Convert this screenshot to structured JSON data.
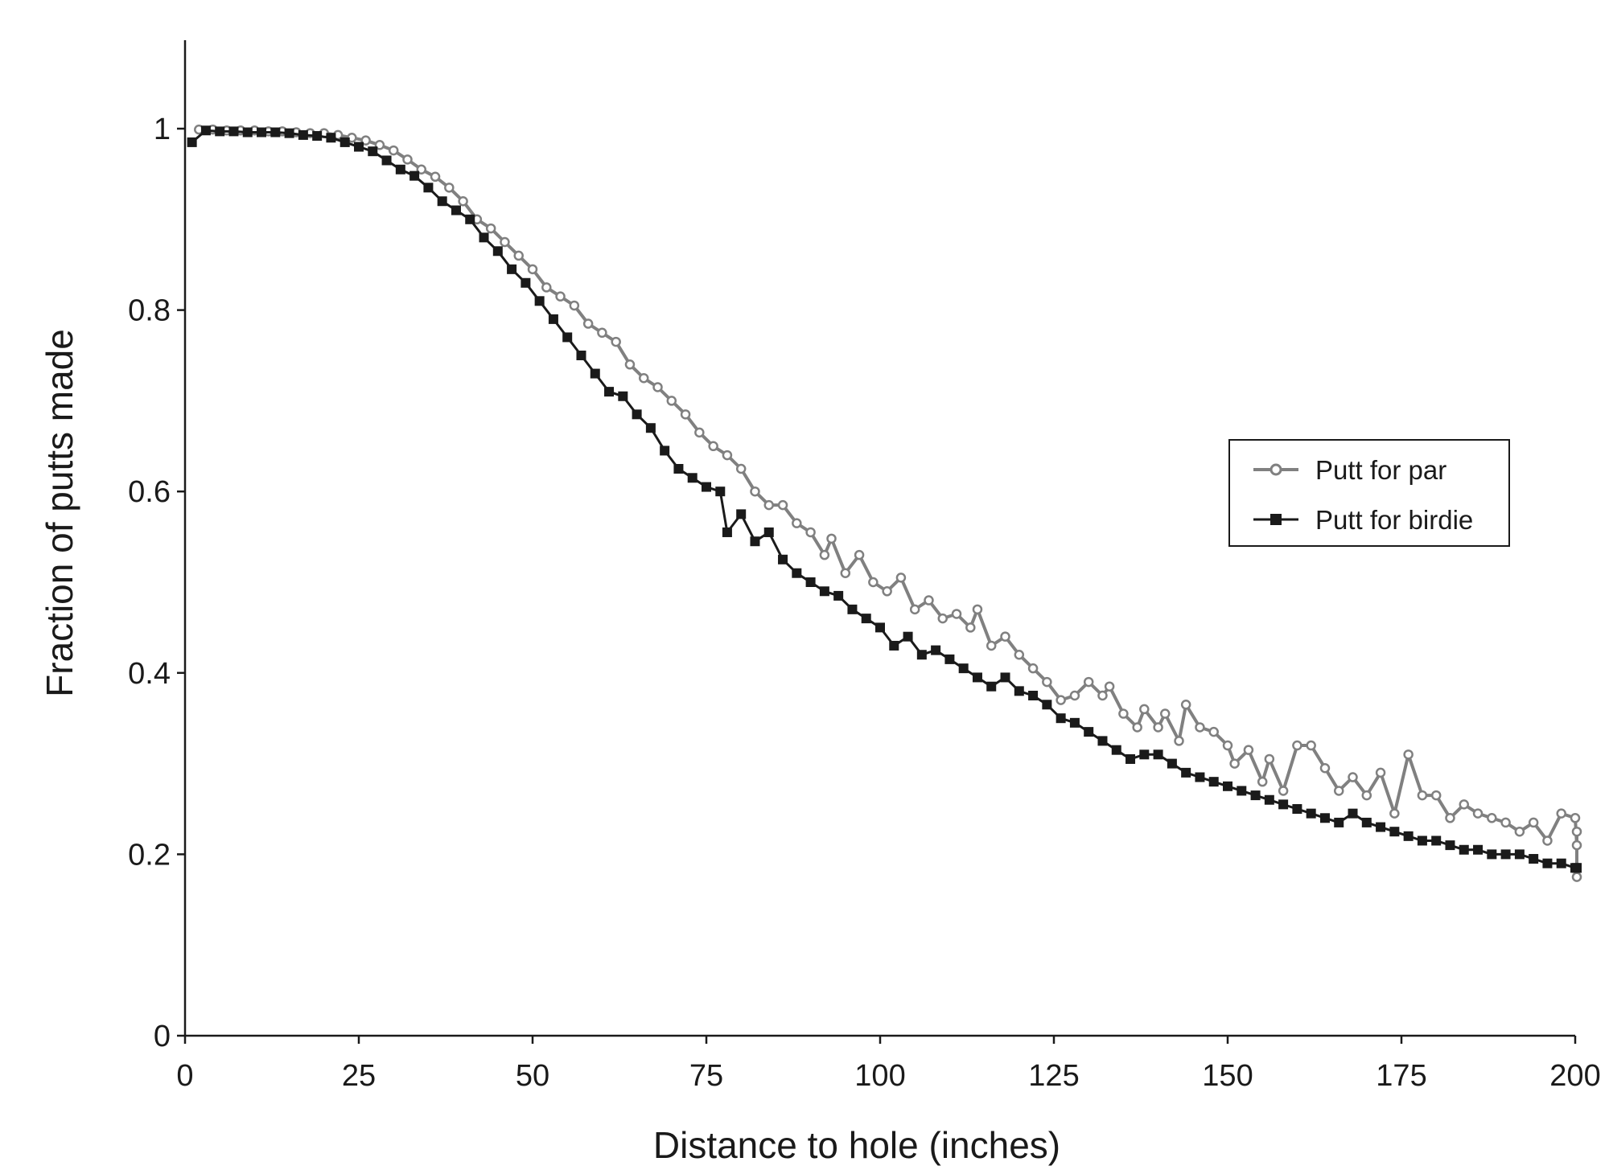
{
  "chart_data": {
    "type": "line",
    "title": "",
    "xlabel": "Distance to hole (inches)",
    "ylabel": "Fraction of putts made",
    "xlim": [
      0,
      200
    ],
    "ylim": [
      0,
      1.1
    ],
    "x_ticks": [
      0,
      25,
      50,
      75,
      100,
      125,
      150,
      175,
      200
    ],
    "x_tick_labels": [
      "0",
      "25",
      "50",
      "75",
      "100",
      "125",
      "150",
      "175",
      "200"
    ],
    "y_ticks": [
      0,
      0.2,
      0.4,
      0.6,
      0.8,
      1
    ],
    "y_tick_labels": [
      "0",
      "0.2",
      "0.4",
      "0.6",
      "0.8",
      "1"
    ],
    "grid": false,
    "legend_position": "right-middle",
    "series": [
      {
        "name": "Putt for par",
        "color": "#808080",
        "marker": "open-circle",
        "points": [
          [
            2,
            0.999
          ],
          [
            4,
            0.999
          ],
          [
            6,
            0.998
          ],
          [
            8,
            0.998
          ],
          [
            10,
            0.998
          ],
          [
            12,
            0.997
          ],
          [
            14,
            0.997
          ],
          [
            16,
            0.996
          ],
          [
            18,
            0.995
          ],
          [
            20,
            0.995
          ],
          [
            22,
            0.993
          ],
          [
            24,
            0.99
          ],
          [
            26,
            0.987
          ],
          [
            28,
            0.982
          ],
          [
            30,
            0.976
          ],
          [
            32,
            0.966
          ],
          [
            34,
            0.955
          ],
          [
            36,
            0.947
          ],
          [
            38,
            0.935
          ],
          [
            40,
            0.92
          ],
          [
            42,
            0.9
          ],
          [
            44,
            0.89
          ],
          [
            46,
            0.875
          ],
          [
            48,
            0.86
          ],
          [
            50,
            0.845
          ],
          [
            52,
            0.825
          ],
          [
            54,
            0.815
          ],
          [
            56,
            0.805
          ],
          [
            58,
            0.785
          ],
          [
            60,
            0.775
          ],
          [
            62,
            0.765
          ],
          [
            64,
            0.74
          ],
          [
            66,
            0.725
          ],
          [
            68,
            0.715
          ],
          [
            70,
            0.7
          ],
          [
            72,
            0.685
          ],
          [
            74,
            0.665
          ],
          [
            76,
            0.65
          ],
          [
            78,
            0.64
          ],
          [
            80,
            0.625
          ],
          [
            82,
            0.6
          ],
          [
            84,
            0.585
          ],
          [
            86,
            0.585
          ],
          [
            88,
            0.565
          ],
          [
            90,
            0.555
          ],
          [
            92,
            0.53
          ],
          [
            93,
            0.548
          ],
          [
            95,
            0.51
          ],
          [
            97,
            0.53
          ],
          [
            99,
            0.5
          ],
          [
            101,
            0.49
          ],
          [
            103,
            0.505
          ],
          [
            105,
            0.47
          ],
          [
            107,
            0.48
          ],
          [
            109,
            0.46
          ],
          [
            111,
            0.465
          ],
          [
            113,
            0.45
          ],
          [
            114,
            0.47
          ],
          [
            116,
            0.43
          ],
          [
            118,
            0.44
          ],
          [
            120,
            0.42
          ],
          [
            122,
            0.405
          ],
          [
            124,
            0.39
          ],
          [
            126,
            0.37
          ],
          [
            128,
            0.375
          ],
          [
            130,
            0.39
          ],
          [
            132,
            0.375
          ],
          [
            133,
            0.385
          ],
          [
            135,
            0.355
          ],
          [
            137,
            0.34
          ],
          [
            138,
            0.36
          ],
          [
            140,
            0.34
          ],
          [
            141,
            0.355
          ],
          [
            143,
            0.325
          ],
          [
            144,
            0.365
          ],
          [
            146,
            0.34
          ],
          [
            148,
            0.335
          ],
          [
            150,
            0.32
          ],
          [
            151,
            0.3
          ],
          [
            153,
            0.315
          ],
          [
            155,
            0.28
          ],
          [
            156,
            0.305
          ],
          [
            158,
            0.27
          ],
          [
            160,
            0.32
          ],
          [
            162,
            0.32
          ],
          [
            164,
            0.295
          ],
          [
            166,
            0.27
          ],
          [
            168,
            0.285
          ],
          [
            170,
            0.265
          ],
          [
            172,
            0.29
          ],
          [
            174,
            0.245
          ],
          [
            176,
            0.31
          ],
          [
            178,
            0.265
          ],
          [
            180,
            0.265
          ],
          [
            182,
            0.24
          ],
          [
            184,
            0.255
          ],
          [
            186,
            0.245
          ],
          [
            188,
            0.24
          ],
          [
            190,
            0.235
          ],
          [
            192,
            0.225
          ],
          [
            194,
            0.235
          ],
          [
            196,
            0.215
          ],
          [
            198,
            0.245
          ],
          [
            200,
            0.24
          ],
          [
            202,
            0.21
          ],
          [
            203,
            0.175
          ],
          [
            205,
            0.225
          ]
        ]
      },
      {
        "name": "Putt for birdie",
        "color": "#1a1a1a",
        "marker": "filled-square",
        "points": [
          [
            1,
            0.985
          ],
          [
            3,
            0.998
          ],
          [
            5,
            0.997
          ],
          [
            7,
            0.997
          ],
          [
            9,
            0.996
          ],
          [
            11,
            0.996
          ],
          [
            13,
            0.996
          ],
          [
            15,
            0.995
          ],
          [
            17,
            0.993
          ],
          [
            19,
            0.992
          ],
          [
            21,
            0.99
          ],
          [
            23,
            0.985
          ],
          [
            25,
            0.98
          ],
          [
            27,
            0.975
          ],
          [
            29,
            0.965
          ],
          [
            31,
            0.955
          ],
          [
            33,
            0.948
          ],
          [
            35,
            0.935
          ],
          [
            37,
            0.92
          ],
          [
            39,
            0.91
          ],
          [
            41,
            0.9
          ],
          [
            43,
            0.88
          ],
          [
            45,
            0.865
          ],
          [
            47,
            0.845
          ],
          [
            49,
            0.83
          ],
          [
            51,
            0.81
          ],
          [
            53,
            0.79
          ],
          [
            55,
            0.77
          ],
          [
            57,
            0.75
          ],
          [
            59,
            0.73
          ],
          [
            61,
            0.71
          ],
          [
            63,
            0.705
          ],
          [
            65,
            0.685
          ],
          [
            67,
            0.67
          ],
          [
            69,
            0.645
          ],
          [
            71,
            0.625
          ],
          [
            73,
            0.615
          ],
          [
            75,
            0.605
          ],
          [
            77,
            0.6
          ],
          [
            78,
            0.555
          ],
          [
            80,
            0.575
          ],
          [
            82,
            0.545
          ],
          [
            84,
            0.555
          ],
          [
            86,
            0.525
          ],
          [
            88,
            0.51
          ],
          [
            90,
            0.5
          ],
          [
            92,
            0.49
          ],
          [
            94,
            0.485
          ],
          [
            96,
            0.47
          ],
          [
            98,
            0.46
          ],
          [
            100,
            0.45
          ],
          [
            102,
            0.43
          ],
          [
            104,
            0.44
          ],
          [
            106,
            0.42
          ],
          [
            108,
            0.425
          ],
          [
            110,
            0.415
          ],
          [
            112,
            0.405
          ],
          [
            114,
            0.395
          ],
          [
            116,
            0.385
          ],
          [
            118,
            0.395
          ],
          [
            120,
            0.38
          ],
          [
            122,
            0.375
          ],
          [
            124,
            0.365
          ],
          [
            126,
            0.35
          ],
          [
            128,
            0.345
          ],
          [
            130,
            0.335
          ],
          [
            132,
            0.325
          ],
          [
            134,
            0.315
          ],
          [
            136,
            0.305
          ],
          [
            138,
            0.31
          ],
          [
            140,
            0.31
          ],
          [
            142,
            0.3
          ],
          [
            144,
            0.29
          ],
          [
            146,
            0.285
          ],
          [
            148,
            0.28
          ],
          [
            150,
            0.275
          ],
          [
            152,
            0.27
          ],
          [
            154,
            0.265
          ],
          [
            156,
            0.26
          ],
          [
            158,
            0.255
          ],
          [
            160,
            0.25
          ],
          [
            162,
            0.245
          ],
          [
            164,
            0.24
          ],
          [
            166,
            0.235
          ],
          [
            168,
            0.245
          ],
          [
            170,
            0.235
          ],
          [
            172,
            0.23
          ],
          [
            174,
            0.225
          ],
          [
            176,
            0.22
          ],
          [
            178,
            0.215
          ],
          [
            180,
            0.215
          ],
          [
            182,
            0.21
          ],
          [
            184,
            0.205
          ],
          [
            186,
            0.205
          ],
          [
            188,
            0.2
          ],
          [
            190,
            0.2
          ],
          [
            192,
            0.2
          ],
          [
            194,
            0.195
          ],
          [
            196,
            0.19
          ],
          [
            198,
            0.19
          ],
          [
            200,
            0.185
          ],
          [
            202,
            0.185
          ],
          [
            204,
            0.185
          ]
        ]
      }
    ]
  }
}
